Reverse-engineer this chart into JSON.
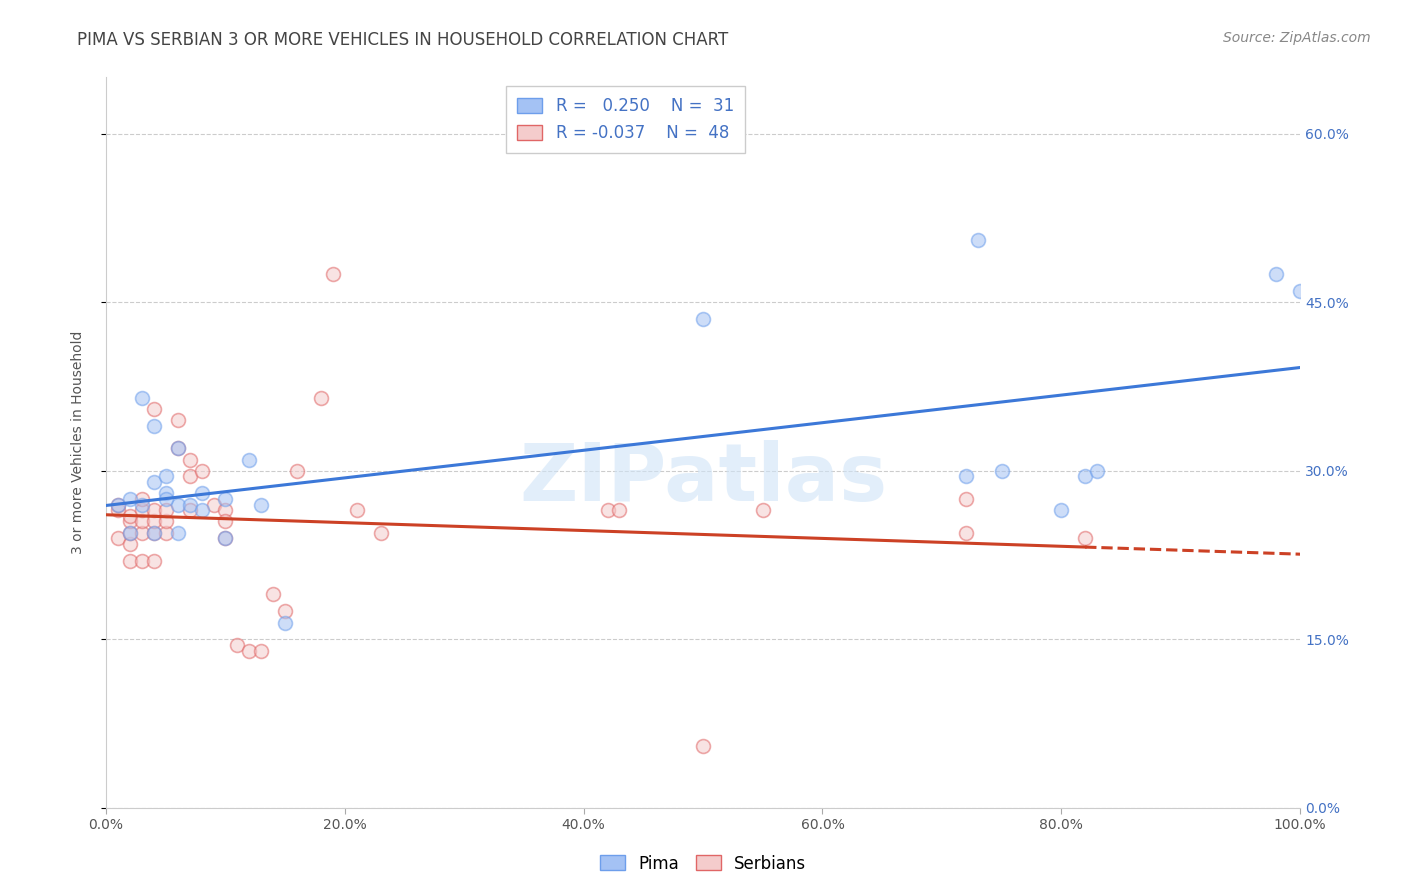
{
  "title": "PIMA VS SERBIAN 3 OR MORE VEHICLES IN HOUSEHOLD CORRELATION CHART",
  "source": "Source: ZipAtlas.com",
  "ylabel": "3 or more Vehicles in Household",
  "watermark": "ZIPatlas",
  "xlim": [
    0.0,
    1.0
  ],
  "ylim": [
    0.0,
    0.65
  ],
  "xticks": [
    0.0,
    0.2,
    0.4,
    0.6,
    0.8,
    1.0
  ],
  "xticklabels": [
    "0.0%",
    "20.0%",
    "40.0%",
    "60.0%",
    "80.0%",
    "100.0%"
  ],
  "yticks": [
    0.0,
    0.15,
    0.3,
    0.45,
    0.6
  ],
  "yticklabels": [
    "0.0%",
    "15.0%",
    "30.0%",
    "45.0%",
    "60.0%"
  ],
  "grid_color": "#cccccc",
  "background_color": "#ffffff",
  "pima_color": "#a4c2f4",
  "pima_edge_color": "#6d9eeb",
  "serbian_color": "#f4cccc",
  "serbian_edge_color": "#e06666",
  "pima_R": 0.25,
  "pima_N": 31,
  "serbian_R": -0.037,
  "serbian_N": 48,
  "pima_line_color": "#3c78d8",
  "serbian_line_color": "#cc4125",
  "pima_points_x": [
    0.01,
    0.02,
    0.02,
    0.03,
    0.03,
    0.04,
    0.04,
    0.05,
    0.05,
    0.06,
    0.06,
    0.07,
    0.08,
    0.08,
    0.1,
    0.1,
    0.12,
    0.13,
    0.15,
    0.5,
    0.72,
    0.73,
    0.75,
    0.8,
    0.82,
    0.83,
    0.98,
    1.0,
    0.04,
    0.05,
    0.06
  ],
  "pima_points_y": [
    0.27,
    0.275,
    0.245,
    0.27,
    0.365,
    0.34,
    0.29,
    0.295,
    0.28,
    0.32,
    0.27,
    0.27,
    0.28,
    0.265,
    0.275,
    0.24,
    0.31,
    0.27,
    0.165,
    0.435,
    0.295,
    0.505,
    0.3,
    0.265,
    0.295,
    0.3,
    0.475,
    0.46,
    0.245,
    0.275,
    0.245
  ],
  "serbian_points_x": [
    0.01,
    0.01,
    0.01,
    0.02,
    0.02,
    0.02,
    0.02,
    0.02,
    0.03,
    0.03,
    0.03,
    0.03,
    0.03,
    0.04,
    0.04,
    0.04,
    0.04,
    0.04,
    0.05,
    0.05,
    0.05,
    0.06,
    0.06,
    0.07,
    0.07,
    0.07,
    0.08,
    0.09,
    0.1,
    0.1,
    0.1,
    0.11,
    0.12,
    0.13,
    0.14,
    0.15,
    0.16,
    0.18,
    0.19,
    0.21,
    0.23,
    0.42,
    0.5,
    0.55,
    0.72,
    0.72,
    0.82,
    0.43
  ],
  "serbian_points_y": [
    0.265,
    0.27,
    0.24,
    0.235,
    0.245,
    0.255,
    0.26,
    0.22,
    0.22,
    0.245,
    0.255,
    0.265,
    0.275,
    0.22,
    0.245,
    0.255,
    0.265,
    0.355,
    0.245,
    0.255,
    0.265,
    0.345,
    0.32,
    0.295,
    0.31,
    0.265,
    0.3,
    0.27,
    0.24,
    0.265,
    0.255,
    0.145,
    0.14,
    0.14,
    0.19,
    0.175,
    0.3,
    0.365,
    0.475,
    0.265,
    0.245,
    0.265,
    0.055,
    0.265,
    0.245,
    0.275,
    0.24,
    0.265
  ],
  "legend_pima_label": "Pima",
  "legend_serbian_label": "Serbians",
  "marker_size": 100,
  "marker_alpha": 0.55,
  "title_fontsize": 12,
  "axis_label_fontsize": 10,
  "tick_fontsize": 10,
  "legend_fontsize": 12,
  "source_fontsize": 10
}
